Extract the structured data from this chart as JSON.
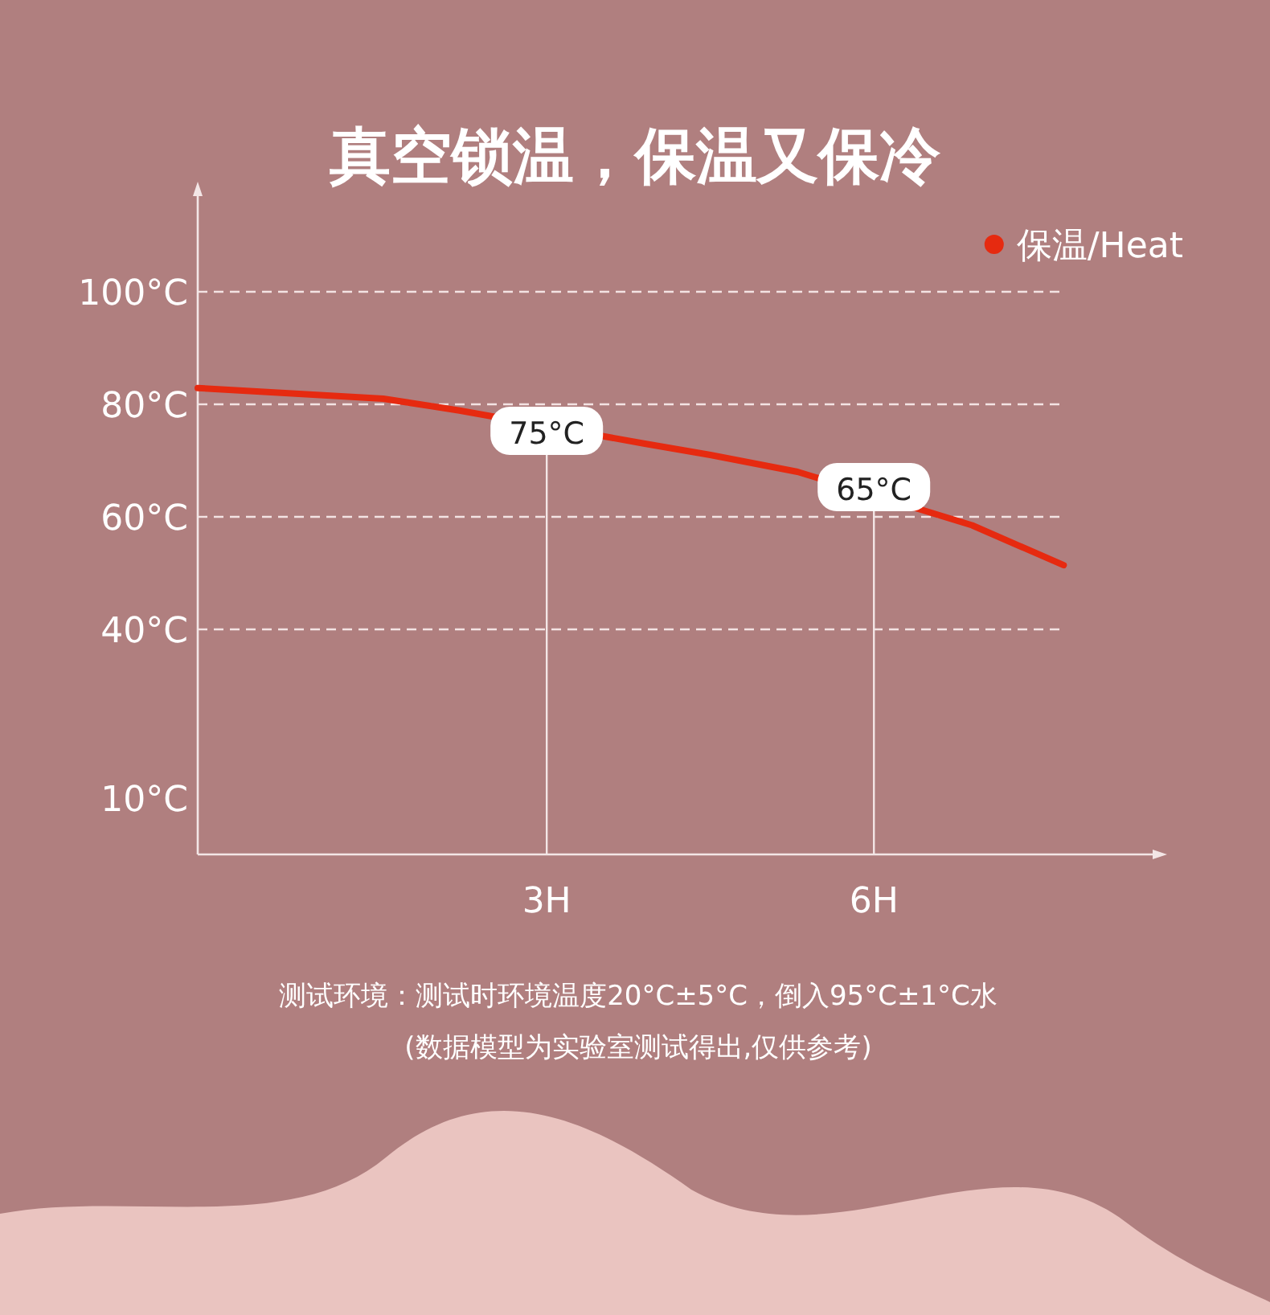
{
  "chart_data": {
    "type": "line",
    "title": "真空锁温，保温又保冷",
    "x": [
      -0.2,
      1.5,
      2.2,
      3.9,
      4.5,
      5.3,
      6.9,
      7.74
    ],
    "series": [
      {
        "name": "保温/Heat",
        "color": "#e62a10",
        "values": [
          82.9,
          81,
          78.9,
          73,
          71,
          68,
          58.5,
          51.4
        ]
      }
    ],
    "xlim": [
      -0.2,
      8.6
    ],
    "ylim": [
      0,
      117
    ],
    "xticks": [
      {
        "value": 3,
        "label": "3H"
      },
      {
        "value": 6,
        "label": "6H"
      }
    ],
    "yticks": [
      {
        "value": 100,
        "label": "100°C"
      },
      {
        "value": 80,
        "label": "80°C"
      },
      {
        "value": 60,
        "label": "60°C"
      },
      {
        "value": 40,
        "label": "40°C"
      },
      {
        "value": 10,
        "label": "10°C"
      }
    ],
    "ref_lines": [
      {
        "axis": "y",
        "value": 100,
        "label": null,
        "color": "#f3e3e3",
        "line_style": "dashed"
      },
      {
        "axis": "y",
        "value": 80,
        "label": null,
        "color": "#f3e3e3",
        "line_style": "dashed"
      },
      {
        "axis": "y",
        "value": 60,
        "label": null,
        "color": "#f3e3e3",
        "line_style": "dashed"
      },
      {
        "axis": "y",
        "value": 40,
        "label": null,
        "color": "#f3e3e3",
        "line_style": "dashed"
      }
    ],
    "legend": "top right",
    "grid": false,
    "marker": "none",
    "line_style": "solid",
    "annotations": [
      {
        "text": "75°C",
        "x": 3,
        "y": 75
      },
      {
        "text": "65°C",
        "x": 6,
        "y": 65
      },
      "测试环境：测试时环境温度20°C±5°C，倒入95°C±1°C水",
      "(数据模型为实验室测试得出,仅供参考)"
    ]
  }
}
